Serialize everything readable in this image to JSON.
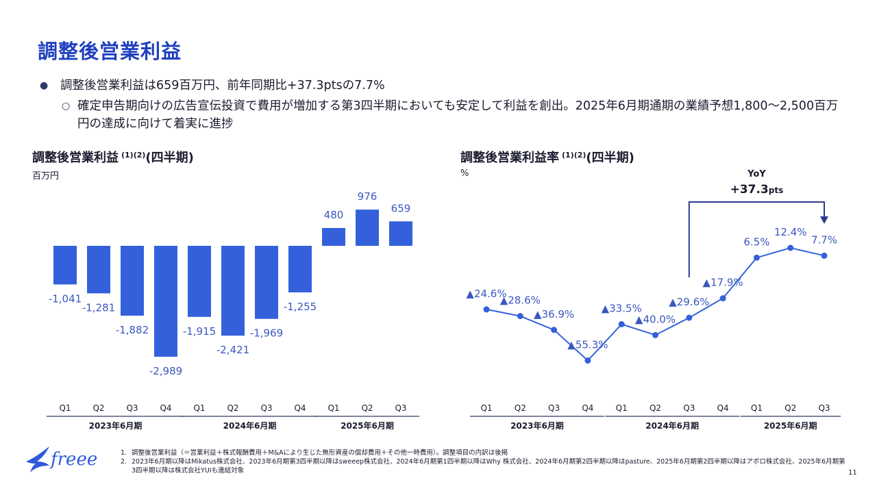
{
  "page_title": "調整後営業利益",
  "bullets": {
    "main": "調整後営業利益は659百万円、前年同期比+37.3ptsの7.7%",
    "sub": "確定申告期向けの広告宣伝投資で費用が増加する第3四半期においても安定して利益を創出。2025年6月期通期の業績予想1,800～2,500百万円の達成に向けて着実に進捗"
  },
  "left_chart_title": "調整後営業利益",
  "left_chart_note": "(1)(2)",
  "left_chart_suffix": "(四半期)",
  "left_unit": "百万円",
  "right_chart_title": "調整後営業利益率",
  "right_chart_note": "(1)(2)",
  "right_chart_suffix": "(四半期)",
  "right_unit": "%",
  "yoy": {
    "label": "YoY",
    "value": "+37.3",
    "unit": "pts"
  },
  "chart_data": [
    {
      "type": "bar",
      "title": "調整後営業利益 (四半期)",
      "ylabel": "百万円",
      "categories": [
        "Q1",
        "Q2",
        "Q3",
        "Q4",
        "Q1",
        "Q2",
        "Q3",
        "Q4",
        "Q1",
        "Q2",
        "Q3"
      ],
      "groups": [
        {
          "label": "2023年6月期",
          "size": 4
        },
        {
          "label": "2024年6月期",
          "size": 4
        },
        {
          "label": "2025年6月期",
          "size": 3
        }
      ],
      "values": [
        -1041,
        -1281,
        -1882,
        -2989,
        -1915,
        -2421,
        -1969,
        -1255,
        480,
        976,
        659
      ],
      "labels": [
        "-1,041",
        "-1,281",
        "-1,882",
        "-2,989",
        "-1,915",
        "-2,421",
        "-1,969",
        "-1,255",
        "480",
        "976",
        "659"
      ],
      "color": "#3461db"
    },
    {
      "type": "line",
      "title": "調整後営業利益率 (四半期)",
      "ylabel": "%",
      "categories": [
        "Q1",
        "Q2",
        "Q3",
        "Q4",
        "Q1",
        "Q2",
        "Q3",
        "Q4",
        "Q1",
        "Q2",
        "Q3"
      ],
      "groups": [
        {
          "label": "2023年6月期",
          "size": 4
        },
        {
          "label": "2024年6月期",
          "size": 4
        },
        {
          "label": "2025年6月期",
          "size": 3
        }
      ],
      "values": [
        -24.6,
        -28.6,
        -36.9,
        -55.3,
        -33.5,
        -40.0,
        -29.6,
        -17.9,
        6.5,
        12.4,
        7.7
      ],
      "labels": [
        "▲24.6%",
        "▲28.6%",
        "▲36.9%",
        "▲55.3%",
        "▲33.5%",
        "▲40.0%",
        "▲29.6%",
        "▲17.9%",
        "6.5%",
        "12.4%",
        "7.7%"
      ],
      "color": "#3461db"
    }
  ],
  "footnotes": [
    {
      "num": "1.",
      "text": "調整後営業利益（＝営業利益＋株式報酬費用＋M&Aにより生じた無形資産の償却費用＋その他一時費用）。調整項目の内訳は後掲"
    },
    {
      "num": "2.",
      "text": "2023年6月期以降はMikatus株式会社、2023年6月期第3四半期以降はsweeep株式会社、2024年6月期第1四半期以降はWhy 株式会社、2024年6月期第2四半期以降はpasture、2025年6月期第2四半期以降はアポロ株式会社、2025年6月期第3四半期以降は株式会社YUIも連結対象"
    }
  ],
  "logo_text": "freee",
  "page_number": "11",
  "colors": {
    "accent": "#1f3fbf",
    "bar": "#3461db",
    "text": "#1a1a2e",
    "axis": "#2b3a67"
  }
}
